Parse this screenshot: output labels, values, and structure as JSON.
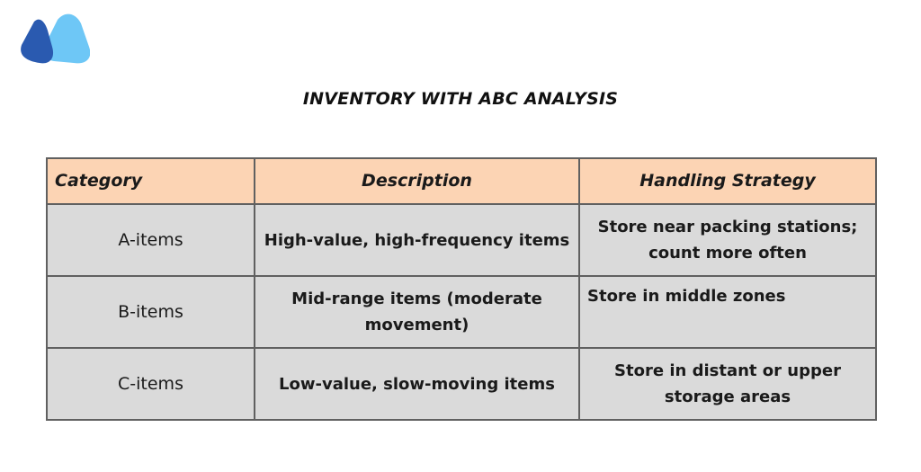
{
  "logo": {
    "name": "brand-logo",
    "colors": {
      "left": "#2a5ab0",
      "right": "#6ec7f6"
    }
  },
  "title": "INVENTORY WITH ABC ANALYSIS",
  "table": {
    "headers": [
      "Category",
      "Description",
      "Handling Strategy"
    ],
    "rows": [
      {
        "category": "A-items",
        "description": "High-value, high-frequency items",
        "strategy": "Store near packing stations; count more often"
      },
      {
        "category": "B-items",
        "description": "Mid-range items (moderate movement)",
        "strategy": "Store in middle zones"
      },
      {
        "category": "C-items",
        "description": "Low-value, slow-moving items",
        "strategy": "Store in distant or upper storage areas"
      }
    ]
  },
  "colors": {
    "header_bg": "#fcd4b4",
    "cell_bg": "#dadada",
    "border": "#606060"
  }
}
